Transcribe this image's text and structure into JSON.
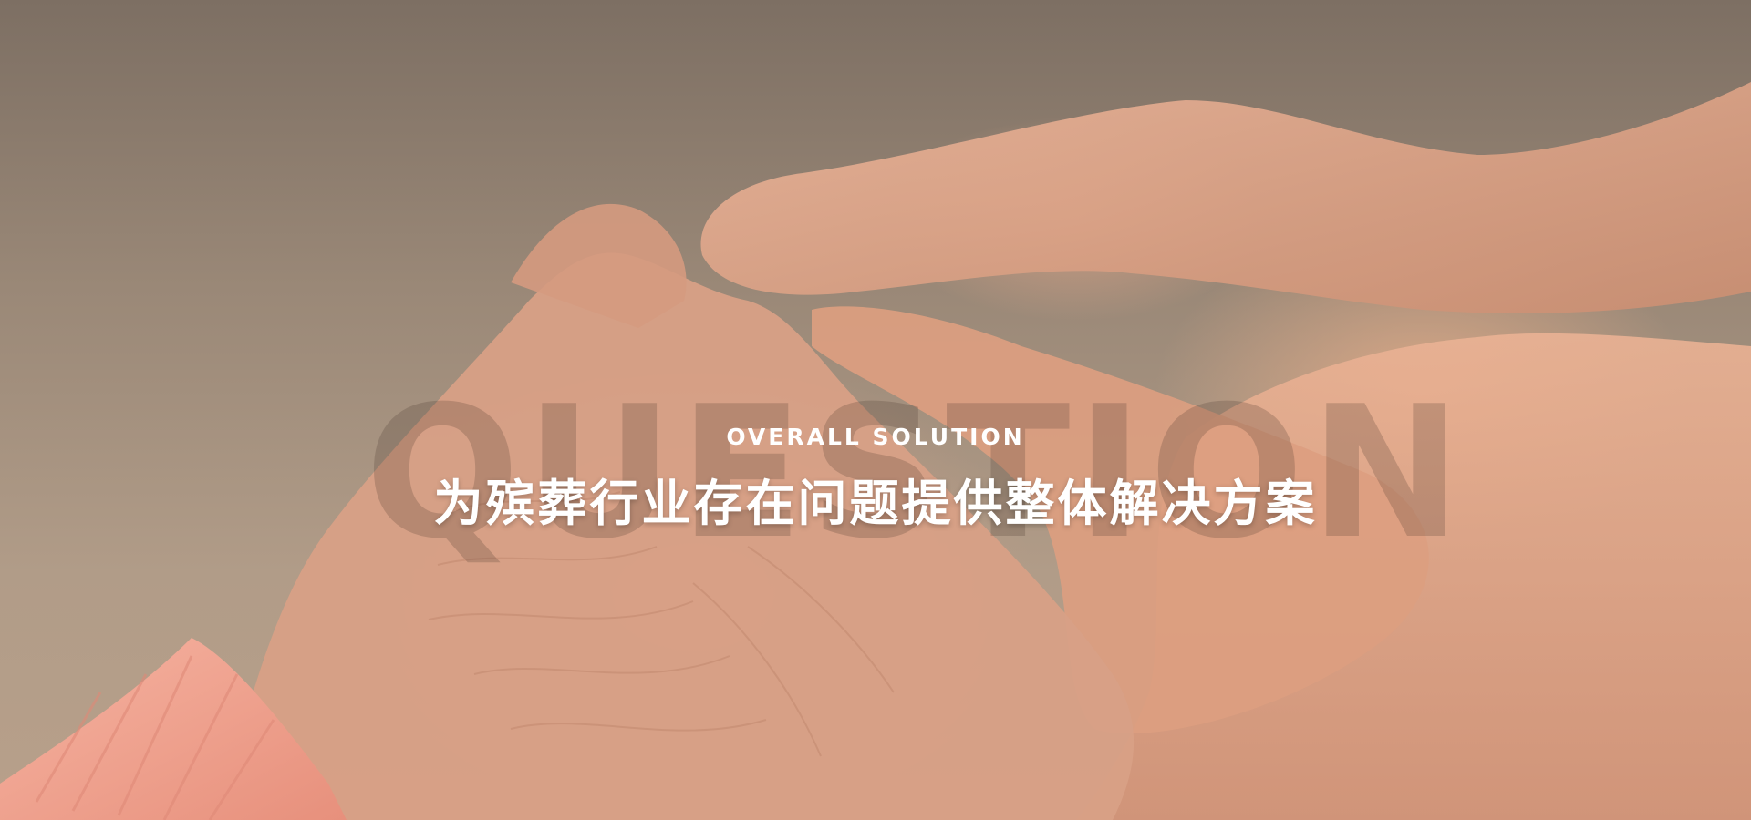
{
  "hero": {
    "watermark": "QUESTION",
    "subtitle": "OVERALL SOLUTION",
    "title": "为殡葬行业存在问题提供整体解决方案",
    "image_alt": "elderly-hand-held-by-younger-hands",
    "colors": {
      "text": "#ffffff",
      "background": "#9a8877",
      "skin": "#d9a184",
      "sleeve": "#f2a996"
    }
  }
}
